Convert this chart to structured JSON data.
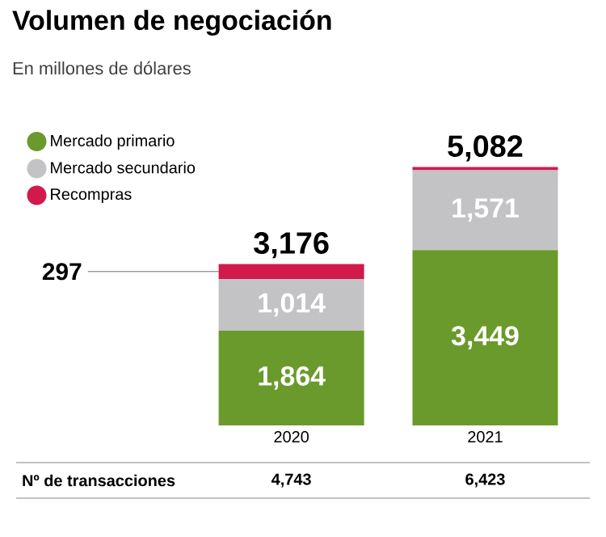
{
  "chart_data": {
    "type": "bar",
    "title": "Volumen de negociación",
    "subtitle": "En millones de dólares",
    "categories": [
      "2020",
      "2021"
    ],
    "stacked": true,
    "legend": "top left",
    "series": [
      {
        "name": "Mercado primario",
        "color": "#6a9a2b",
        "values": [
          1864,
          3449
        ],
        "value_labels": [
          "1,864",
          "3,449"
        ]
      },
      {
        "name": "Mercado secundario",
        "color": "#c3c3c6",
        "values": [
          1014,
          1571
        ],
        "value_labels": [
          "1,014",
          "1,571"
        ]
      },
      {
        "name": "Recompras",
        "color": "#d11a4b",
        "values": [
          297,
          62
        ],
        "value_labels": [
          "297",
          null
        ]
      }
    ],
    "totals": [
      "3,176",
      "5,082"
    ],
    "annotations": [
      "Nº de transacciones",
      "4,743",
      "6,423"
    ]
  }
}
